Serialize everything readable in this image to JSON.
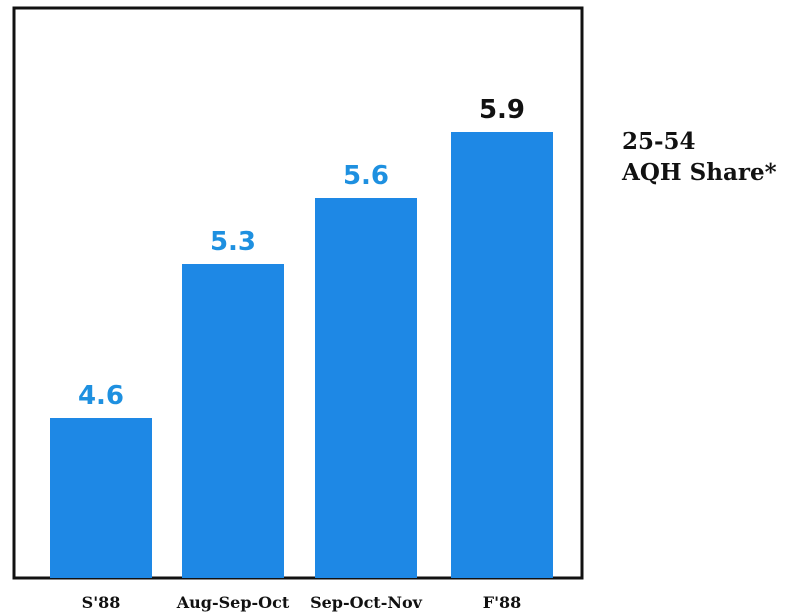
{
  "chart_data": {
    "type": "bar",
    "categories": [
      "S'88",
      "Aug-Sep-Oct",
      "Sep-Oct-Nov",
      "F'88"
    ],
    "values": [
      4.6,
      5.3,
      5.6,
      5.9
    ],
    "value_labels": [
      "4.6",
      "5.3",
      "5.6",
      "5.9"
    ],
    "title": "",
    "xlabel": "",
    "ylabel": "",
    "series": [
      {
        "values": [
          4.6,
          5.3,
          5.6,
          5.9
        ]
      }
    ],
    "grid": false,
    "legend": "none",
    "bar_color": "#1e88e5",
    "label_colors": [
      "#1e90e0",
      "#1e90e0",
      "#1e90e0",
      "#111111"
    ]
  },
  "side_label": {
    "line1": "25-54",
    "line2": "AQH Share*"
  }
}
